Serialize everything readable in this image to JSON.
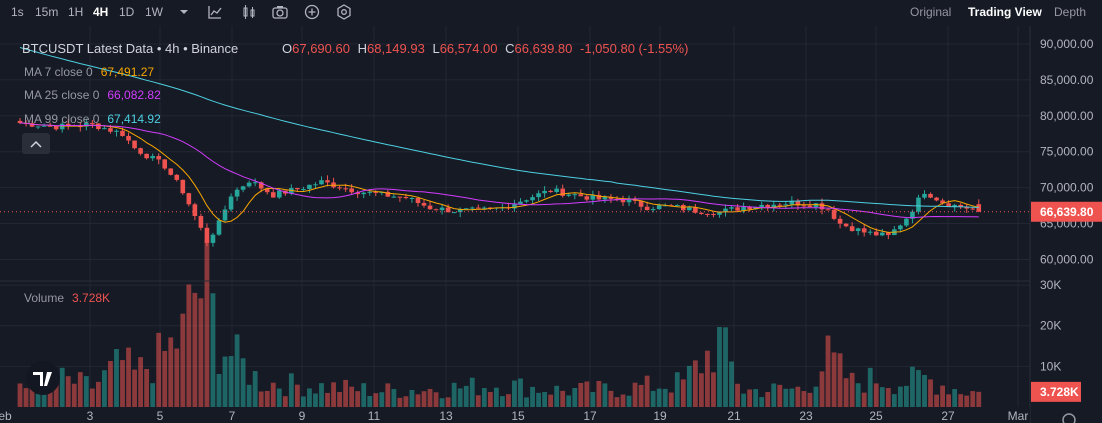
{
  "toolbar": {
    "timeframes": [
      "1s",
      "15m",
      "1H",
      "4H",
      "1D",
      "1W"
    ],
    "active_timeframe": "4H",
    "views": [
      "Original",
      "Trading View",
      "Depth"
    ],
    "active_view": "Trading View",
    "icons": [
      "chevron-down-icon",
      "indicator-icon",
      "candle-style-icon",
      "camera-icon",
      "plus-circle-icon",
      "settings-icon"
    ]
  },
  "legend": {
    "symbol": "BTCUSDT Latest Data • 4h • Binance",
    "o_label": "O",
    "o": "67,690.60",
    "h_label": "H",
    "h": "68,149.93",
    "l_label": "L",
    "l": "66,574.00",
    "c_label": "C",
    "c": "66,639.80",
    "change": "-1,050.80 (-1.55%)",
    "ma7_label": "MA 7 close 0",
    "ma7": "67,491.27",
    "ma25_label": "MA 25 close 0",
    "ma25": "66,082.82",
    "ma99_label": "MA 99 close 0",
    "ma99": "67,414.92",
    "volume_label": "Volume",
    "volume": "3.728K"
  },
  "colors": {
    "background": "#161a25",
    "up": "#26a69a",
    "down": "#ef5350",
    "ma7": "#f7a600",
    "ma25": "#d33cff",
    "ma99": "#4dd0e1"
  },
  "chart_data": {
    "type": "candlestick",
    "symbol": "BTCUSDT",
    "interval": "4h",
    "price_axis": {
      "ticks": [
        "90,000.00",
        "85,000.00",
        "80,000.00",
        "75,000.00",
        "70,000.00",
        "65,000.00",
        "60,000.00"
      ],
      "range": [
        57000,
        92500
      ]
    },
    "volume_axis": {
      "ticks": [
        "30K",
        "20K",
        "10K"
      ],
      "range": [
        0,
        31000
      ]
    },
    "date_ticks": [
      "eb",
      "3",
      "5",
      "7",
      "9",
      "11",
      "13",
      "15",
      "17",
      "19",
      "21",
      "23",
      "25",
      "27",
      "Mar"
    ],
    "last_price_label": "66,639.80",
    "last_volume_label": "3.728K",
    "close_anchors": [
      [
        0,
        79000
      ],
      [
        6,
        78500
      ],
      [
        12,
        78800
      ],
      [
        17,
        77500
      ],
      [
        19,
        75500
      ],
      [
        24,
        73000
      ],
      [
        27,
        69500
      ],
      [
        29,
        66000
      ],
      [
        31,
        62500
      ],
      [
        33,
        65000
      ],
      [
        35,
        69000
      ],
      [
        38,
        71000
      ],
      [
        42,
        69000
      ],
      [
        46,
        69800
      ],
      [
        50,
        70800
      ],
      [
        56,
        69500
      ],
      [
        60,
        69000
      ],
      [
        64,
        68600
      ],
      [
        68,
        67200
      ],
      [
        72,
        66800
      ],
      [
        76,
        66800
      ],
      [
        80,
        67200
      ],
      [
        84,
        68500
      ],
      [
        88,
        69600
      ],
      [
        92,
        69000
      ],
      [
        96,
        68400
      ],
      [
        100,
        68300
      ],
      [
        104,
        67300
      ],
      [
        108,
        67400
      ],
      [
        112,
        66800
      ],
      [
        116,
        66600
      ],
      [
        120,
        67300
      ],
      [
        124,
        67700
      ],
      [
        128,
        67900
      ],
      [
        132,
        67700
      ],
      [
        134,
        67000
      ],
      [
        136,
        65000
      ],
      [
        140,
        63800
      ],
      [
        144,
        63200
      ],
      [
        147,
        65800
      ],
      [
        150,
        69500
      ],
      [
        153,
        68000
      ],
      [
        155,
        67500
      ],
      [
        157,
        67200
      ],
      [
        159,
        66640
      ]
    ],
    "volume_anchors": [
      [
        0,
        4000
      ],
      [
        6,
        7000
      ],
      [
        12,
        5000
      ],
      [
        17,
        11000
      ],
      [
        19,
        8000
      ],
      [
        24,
        13000
      ],
      [
        27,
        18000
      ],
      [
        29,
        28000
      ],
      [
        31,
        29000
      ],
      [
        33,
        16000
      ],
      [
        35,
        13000
      ],
      [
        40,
        6000
      ],
      [
        50,
        5000
      ],
      [
        60,
        4000
      ],
      [
        70,
        4500
      ],
      [
        80,
        5500
      ],
      [
        90,
        4000
      ],
      [
        100,
        4500
      ],
      [
        110,
        6000
      ],
      [
        116,
        16000
      ],
      [
        120,
        4000
      ],
      [
        130,
        4500
      ],
      [
        134,
        12000
      ],
      [
        138,
        6000
      ],
      [
        142,
        7000
      ],
      [
        146,
        6000
      ],
      [
        150,
        7000
      ],
      [
        156,
        4000
      ],
      [
        159,
        3728
      ]
    ]
  }
}
